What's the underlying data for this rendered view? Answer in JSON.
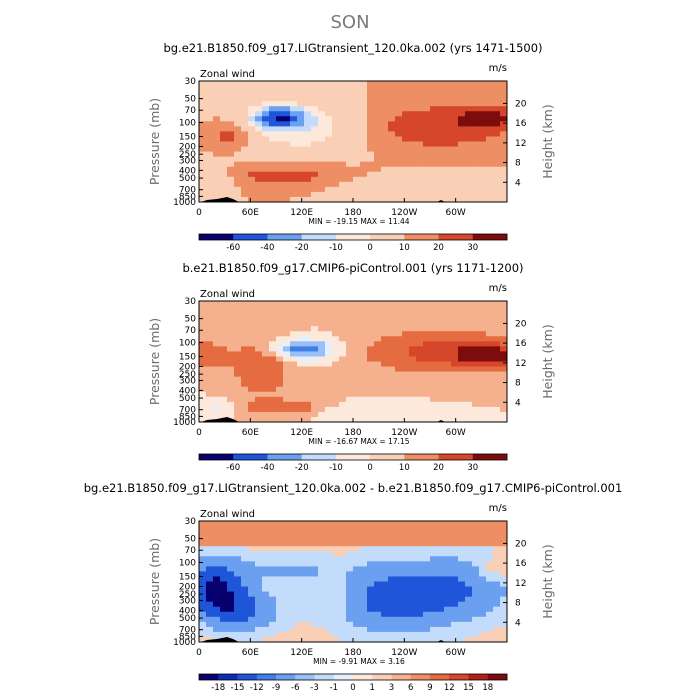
{
  "suptitle": "SON",
  "chart_data": [
    {
      "type": "heatmap",
      "title": "bg.e21.B1850.f09_g17.LIGtransient_120.0ka.002 (yrs 1471-1500)",
      "variable": "Zonal wind",
      "units": "m/s",
      "xlabel": "",
      "ylabel": "Pressure (mb)",
      "ylabel_right": "Height (km)",
      "xticks": [
        "0",
        "60E",
        "120E",
        "180",
        "120W",
        "60W"
      ],
      "yticks": [
        "30",
        "50",
        "70",
        "100",
        "150",
        "200",
        "250",
        "300",
        "400",
        "500",
        "700",
        "850",
        "1000"
      ],
      "yticks_right": [
        "20",
        "16",
        "12",
        "8",
        "4"
      ],
      "stats": "MIN = -19.15   MAX =  11.44",
      "min": -19.15,
      "max": 11.44,
      "colorbar_levels": [
        -60,
        -40,
        -20,
        -10,
        0,
        10,
        20,
        30
      ],
      "colorbar_labels": [
        "-60",
        "-40",
        "-20",
        "-10",
        "0",
        "10",
        "20",
        "30"
      ]
    },
    {
      "type": "heatmap",
      "title": "b.e21.B1850.f09_g17.CMIP6-piControl.001 (yrs 1171-1200)",
      "variable": "Zonal wind",
      "units": "m/s",
      "xlabel": "",
      "ylabel": "Pressure (mb)",
      "ylabel_right": "Height (km)",
      "xticks": [
        "0",
        "60E",
        "120E",
        "180",
        "120W",
        "60W"
      ],
      "yticks": [
        "30",
        "50",
        "70",
        "100",
        "150",
        "200",
        "250",
        "300",
        "400",
        "500",
        "700",
        "850",
        "1000"
      ],
      "yticks_right": [
        "20",
        "16",
        "12",
        "8",
        "4"
      ],
      "stats": "MIN = -16.67   MAX =  17.15",
      "min": -16.67,
      "max": 17.15,
      "colorbar_levels": [
        -60,
        -40,
        -20,
        -10,
        0,
        10,
        20,
        30
      ],
      "colorbar_labels": [
        "-60",
        "-40",
        "-20",
        "-10",
        "0",
        "10",
        "20",
        "30"
      ]
    },
    {
      "type": "heatmap",
      "title": "bg.e21.B1850.f09_g17.LIGtransient_120.0ka.002 - b.e21.B1850.f09_g17.CMIP6-piControl.001",
      "variable": "Zonal wind",
      "units": "m/s",
      "xlabel": "",
      "ylabel": "Pressure (mb)",
      "ylabel_right": "Height (km)",
      "xticks": [
        "0",
        "60E",
        "120E",
        "180",
        "120W",
        "60W"
      ],
      "yticks": [
        "30",
        "50",
        "70",
        "100",
        "150",
        "200",
        "250",
        "300",
        "400",
        "500",
        "700",
        "850",
        "1000"
      ],
      "yticks_right": [
        "20",
        "16",
        "12",
        "8",
        "4"
      ],
      "stats": "MIN =  -9.91   MAX =   3.16",
      "min": -9.91,
      "max": 3.16,
      "colorbar_levels": [
        -18,
        -15,
        -12,
        -9,
        -6,
        -3,
        -1,
        0,
        1,
        3,
        6,
        9,
        12,
        15,
        18
      ],
      "colorbar_labels": [
        "-18",
        "-15",
        "-12",
        "-9",
        "-6",
        "-3",
        "-1",
        "0",
        "1",
        "3",
        "6",
        "9",
        "12",
        "15",
        "18"
      ]
    }
  ],
  "colors": {
    "palette": [
      "#08006e",
      "#0c2cb3",
      "#1f55d9",
      "#3f7fe6",
      "#6b9ff0",
      "#99bff7",
      "#c4dcfb",
      "#e6f0fc",
      "#fde9dc",
      "#f9d0b6",
      "#f5b08e",
      "#ee8e65",
      "#e56b41",
      "#d5462a",
      "#b11f17",
      "#7d0c0c"
    ],
    "topography": "#000000",
    "text": "#000000",
    "suptitle": "#7a7a7a",
    "axis_label": "#6a6a6a"
  }
}
